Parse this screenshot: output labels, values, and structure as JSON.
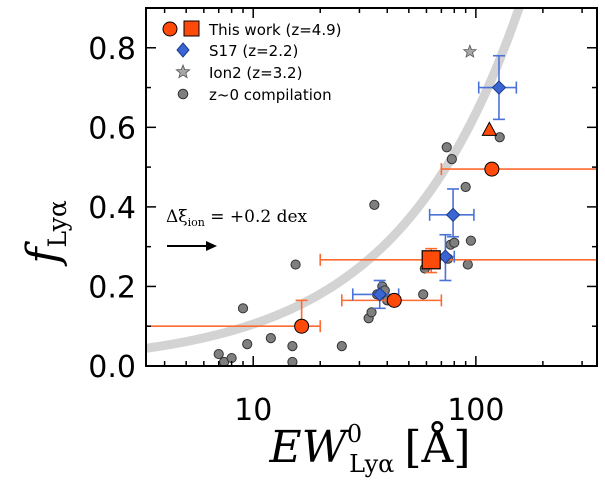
{
  "chart_data": {
    "type": "scatter",
    "title": "",
    "xlabel": "EW⁰ Lyα [Å]",
    "xlabel_parts": {
      "main": "EW",
      "sup": "0",
      "sub": "Lyα",
      "unit": "[Å]"
    },
    "ylabel_parts": {
      "main": "f",
      "sub": "Lyα"
    },
    "xscale": "log",
    "xlim": [
      3.3,
      350
    ],
    "ylim": [
      0.0,
      0.9
    ],
    "x_ticks": [
      10,
      100
    ],
    "x_tick_labels": [
      "10",
      "100"
    ],
    "y_ticks": [
      0.0,
      0.2,
      0.4,
      0.6,
      0.8
    ],
    "y_tick_labels": [
      "0.0",
      "0.2",
      "0.4",
      "0.6",
      "0.8"
    ],
    "legend_position": "top-left",
    "legend": [
      {
        "label": "This work (z=4.9)",
        "markers": [
          "circle",
          "square"
        ],
        "color": "#ff4a0a"
      },
      {
        "label": "S17 (z=2.2)",
        "markers": [
          "diamond"
        ],
        "color": "#3a66d4"
      },
      {
        "label": "Ion2 (z=3.2)",
        "markers": [
          "star"
        ],
        "color": "#a8a8a8"
      },
      {
        "label": "z~0 compilation",
        "markers": [
          "circle"
        ],
        "color": "#808080"
      }
    ],
    "annotation": {
      "text_main": "Δξ",
      "text_sub": "ion",
      "text_rest": " = +0.2 dex"
    },
    "colors": {
      "this_work": "#ff4a0a",
      "s17": "#3a66d4",
      "ion2": "#a8a8a8",
      "z0": "#7f7f7f",
      "curve": "#d3d3d3",
      "errorbar_this": "#ff6a30",
      "errorbar_s17": "#4a72d8"
    },
    "series": [
      {
        "name": "This work (z=4.9)",
        "marker": "circle",
        "points": [
          {
            "x": 16.5,
            "y": 0.1,
            "xerr": [
              3.3,
              20
            ],
            "yerr": [
              0.035,
              0.0
            ]
          },
          {
            "x": 43,
            "y": 0.165,
            "xerr": [
              25,
              70
            ],
            "yerr": [
              0.0,
              0.0
            ]
          },
          {
            "x": 118,
            "y": 0.495,
            "xerr": [
              70,
              350
            ],
            "yerr": [
              0.0,
              0.0
            ]
          }
        ]
      },
      {
        "name": "This work (z=4.9)",
        "marker": "square",
        "points": [
          {
            "x": 63,
            "y": 0.267,
            "xerr": [
              20,
              350
            ],
            "yerr": [
              0.235,
              0.295
            ]
          }
        ]
      },
      {
        "name": "This work (z=4.9)",
        "marker": "triangle",
        "points": [
          {
            "x": 115,
            "y": 0.595
          }
        ]
      },
      {
        "name": "S17 (z=2.2)",
        "marker": "diamond",
        "points": [
          {
            "x": 37,
            "y": 0.18,
            "xerr": [
              28,
              45
            ],
            "yerr": [
              0.145,
              0.215
            ]
          },
          {
            "x": 73,
            "y": 0.275,
            "xerr": [
              65,
              80
            ],
            "yerr": [
              0.215,
              0.33
            ]
          },
          {
            "x": 79,
            "y": 0.38,
            "xerr": [
              62,
              98
            ],
            "yerr": [
              0.325,
              0.445
            ]
          },
          {
            "x": 127,
            "y": 0.7,
            "xerr": [
              103,
              152
            ],
            "yerr": [
              0.62,
              0.78
            ]
          }
        ]
      },
      {
        "name": "Ion2 (z=3.2)",
        "marker": "star",
        "points": [
          {
            "x": 94,
            "y": 0.79
          }
        ]
      },
      {
        "name": "z~0 compilation",
        "marker": "circle",
        "points": [
          {
            "x": 7,
            "y": 0.03
          },
          {
            "x": 7.4,
            "y": 0.01
          },
          {
            "x": 8,
            "y": 0.02
          },
          {
            "x": 9,
            "y": 0.145
          },
          {
            "x": 9.4,
            "y": 0.055
          },
          {
            "x": 12,
            "y": 0.07
          },
          {
            "x": 15,
            "y": 0.05
          },
          {
            "x": 15,
            "y": 0.01
          },
          {
            "x": 15.5,
            "y": 0.255
          },
          {
            "x": 25,
            "y": 0.05
          },
          {
            "x": 33,
            "y": 0.12
          },
          {
            "x": 34,
            "y": 0.135
          },
          {
            "x": 35,
            "y": 0.405
          },
          {
            "x": 36,
            "y": 0.18
          },
          {
            "x": 38,
            "y": 0.2
          },
          {
            "x": 39,
            "y": 0.19
          },
          {
            "x": 40,
            "y": 0.165
          },
          {
            "x": 58,
            "y": 0.18
          },
          {
            "x": 59,
            "y": 0.245
          },
          {
            "x": 74,
            "y": 0.55
          },
          {
            "x": 75,
            "y": 0.27
          },
          {
            "x": 77,
            "y": 0.305
          },
          {
            "x": 78,
            "y": 0.52
          },
          {
            "x": 80,
            "y": 0.31
          },
          {
            "x": 90,
            "y": 0.45
          },
          {
            "x": 92,
            "y": 0.255
          },
          {
            "x": 95,
            "y": 0.315
          },
          {
            "x": 128,
            "y": 0.575
          }
        ]
      }
    ]
  }
}
